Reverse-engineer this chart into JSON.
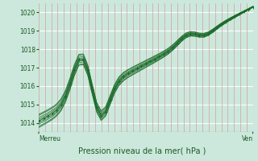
{
  "title": "Pression niveau de la mer( hPa )",
  "xlabel_left": "Merreu",
  "xlabel_right": "Ven",
  "ylim": [
    1013.5,
    1020.5
  ],
  "yticks": [
    1014,
    1015,
    1016,
    1017,
    1018,
    1019,
    1020
  ],
  "bg_color": "#cce8dc",
  "plot_bg_color": "#cce8dc",
  "grid_h_color": "#ffffff",
  "grid_v_color": "#d4a0a0",
  "line_color": "#1a6b2a",
  "line_color_dark": "#1a5a22",
  "num_points": 49,
  "num_vgrid": 34,
  "figsize": [
    3.2,
    2.0
  ],
  "dpi": 100
}
